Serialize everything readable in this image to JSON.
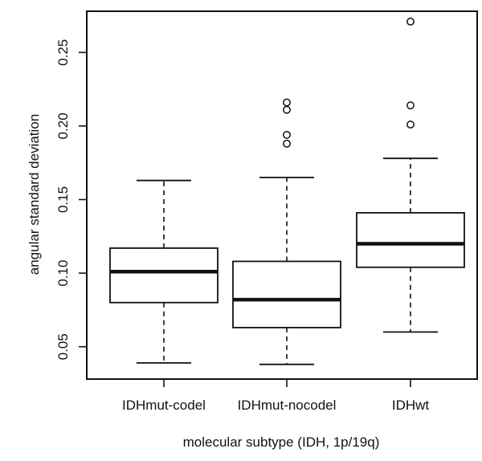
{
  "chart_data": {
    "type": "boxplot",
    "title": "",
    "xlabel": "molecular subtype (IDH, 1p/19q)",
    "ylabel": "angular standard deviation",
    "ylim": [
      0.028,
      0.278
    ],
    "yticks": [
      0.05,
      0.1,
      0.15,
      0.2,
      0.25
    ],
    "ytick_labels": [
      "0.05",
      "0.10",
      "0.15",
      "0.20",
      "0.25"
    ],
    "categories": [
      "IDHmut-codel",
      "IDHmut-nocodel",
      "IDHwt"
    ],
    "grid": false,
    "legend": "none",
    "boxes": [
      {
        "category": "IDHmut-codel",
        "whisker_low": 0.039,
        "q1": 0.08,
        "median": 0.101,
        "q3": 0.117,
        "whisker_high": 0.163,
        "outliers": []
      },
      {
        "category": "IDHmut-nocodel",
        "whisker_low": 0.038,
        "q1": 0.063,
        "median": 0.082,
        "q3": 0.108,
        "whisker_high": 0.165,
        "outliers": [
          0.188,
          0.194,
          0.211,
          0.216
        ]
      },
      {
        "category": "IDHwt",
        "whisker_low": 0.06,
        "q1": 0.104,
        "median": 0.12,
        "q3": 0.141,
        "whisker_high": 0.178,
        "outliers": [
          0.201,
          0.214,
          0.271
        ]
      }
    ]
  }
}
